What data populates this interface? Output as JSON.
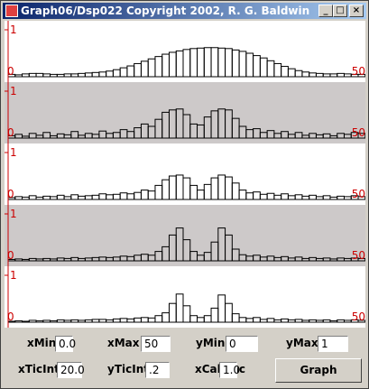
{
  "window": {
    "title": "Graph06/Dsp022 Copyright 2002, R. G. Baldwin"
  },
  "axis_labels": {
    "y_top": "1",
    "y_bottom": "0",
    "x_right": "50"
  },
  "axis_color": "#cc0000",
  "plots": [
    {
      "background": "#ffffff",
      "values": [
        0.05,
        0.04,
        0.06,
        0.07,
        0.07,
        0.06,
        0.05,
        0.05,
        0.06,
        0.06,
        0.07,
        0.08,
        0.09,
        0.1,
        0.12,
        0.15,
        0.19,
        0.23,
        0.28,
        0.33,
        0.38,
        0.43,
        0.48,
        0.52,
        0.55,
        0.58,
        0.6,
        0.61,
        0.62,
        0.62,
        0.61,
        0.6,
        0.57,
        0.54,
        0.5,
        0.45,
        0.4,
        0.34,
        0.28,
        0.22,
        0.17,
        0.13,
        0.1,
        0.08,
        0.07,
        0.06,
        0.06,
        0.07,
        0.06,
        0.05,
        0.05
      ]
    },
    {
      "background": "#cdc9c9",
      "values": [
        0.05,
        0.08,
        0.04,
        0.1,
        0.06,
        0.12,
        0.05,
        0.09,
        0.07,
        0.14,
        0.06,
        0.1,
        0.08,
        0.15,
        0.1,
        0.12,
        0.18,
        0.14,
        0.22,
        0.3,
        0.25,
        0.4,
        0.55,
        0.6,
        0.62,
        0.5,
        0.3,
        0.28,
        0.45,
        0.58,
        0.62,
        0.6,
        0.42,
        0.25,
        0.18,
        0.2,
        0.12,
        0.16,
        0.1,
        0.14,
        0.08,
        0.12,
        0.06,
        0.1,
        0.07,
        0.09,
        0.05,
        0.1,
        0.08,
        0.12,
        0.1
      ]
    },
    {
      "background": "#ffffff",
      "values": [
        0.04,
        0.06,
        0.05,
        0.08,
        0.05,
        0.07,
        0.06,
        0.09,
        0.06,
        0.1,
        0.07,
        0.08,
        0.09,
        0.12,
        0.1,
        0.11,
        0.14,
        0.12,
        0.15,
        0.2,
        0.18,
        0.3,
        0.42,
        0.5,
        0.52,
        0.46,
        0.3,
        0.2,
        0.32,
        0.46,
        0.52,
        0.48,
        0.35,
        0.2,
        0.14,
        0.16,
        0.11,
        0.13,
        0.09,
        0.12,
        0.08,
        0.1,
        0.07,
        0.09,
        0.06,
        0.08,
        0.05,
        0.07,
        0.06,
        0.08,
        0.06
      ]
    },
    {
      "background": "#cdc9c9",
      "values": [
        0.03,
        0.04,
        0.03,
        0.05,
        0.04,
        0.05,
        0.04,
        0.06,
        0.05,
        0.07,
        0.05,
        0.06,
        0.07,
        0.08,
        0.07,
        0.08,
        0.1,
        0.09,
        0.12,
        0.14,
        0.12,
        0.2,
        0.3,
        0.55,
        0.7,
        0.45,
        0.2,
        0.12,
        0.18,
        0.4,
        0.7,
        0.55,
        0.25,
        0.13,
        0.1,
        0.12,
        0.08,
        0.1,
        0.07,
        0.09,
        0.06,
        0.08,
        0.05,
        0.07,
        0.05,
        0.06,
        0.04,
        0.06,
        0.05,
        0.06,
        0.05
      ]
    },
    {
      "background": "#ffffff",
      "values": [
        0.02,
        0.03,
        0.02,
        0.04,
        0.03,
        0.04,
        0.03,
        0.05,
        0.04,
        0.05,
        0.04,
        0.05,
        0.06,
        0.06,
        0.05,
        0.07,
        0.08,
        0.07,
        0.09,
        0.1,
        0.09,
        0.14,
        0.2,
        0.4,
        0.6,
        0.35,
        0.14,
        0.1,
        0.14,
        0.3,
        0.58,
        0.4,
        0.18,
        0.1,
        0.08,
        0.1,
        0.06,
        0.08,
        0.05,
        0.07,
        0.05,
        0.06,
        0.04,
        0.05,
        0.04,
        0.05,
        0.03,
        0.05,
        0.04,
        0.05,
        0.04
      ]
    }
  ],
  "controls": {
    "xMin": {
      "label": "xMin",
      "value": "0.0"
    },
    "xMax": {
      "label": "xMax",
      "value": "50"
    },
    "yMin": {
      "label": "yMin",
      "value": "0"
    },
    "yMax": {
      "label": "yMax",
      "value": "1"
    },
    "xTicInt": {
      "label": "xTicInt",
      "value": "20.0"
    },
    "yTicInt": {
      "label": "yTicInt",
      "value": ".2"
    },
    "xCalcInc": {
      "label": "xCalcInc",
      "value": "1.0"
    }
  },
  "button": "Graph"
}
